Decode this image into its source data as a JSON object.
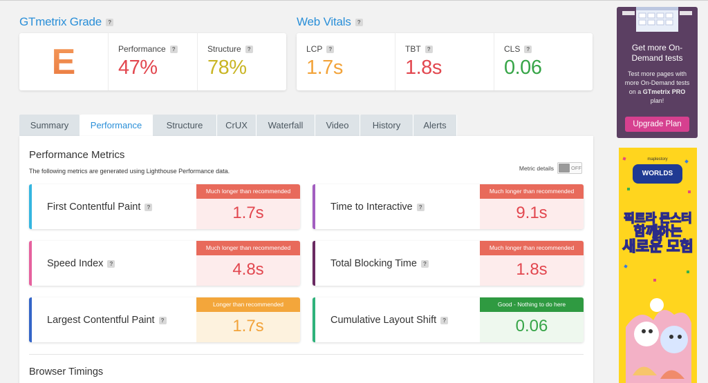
{
  "colors": {
    "accent": "#2a8fd8",
    "red": "#e2474f",
    "orange": "#f2a33a",
    "yellow_green": "#c9b524",
    "green": "#37a548",
    "badge_red": "#e86a5b",
    "badge_orange": "#f3a63b",
    "badge_green": "#2f9a41",
    "tint_red": "#fdecec",
    "tint_orange": "#fdf2de",
    "tint_green": "#eef8ee",
    "promo_bg": "#5b3f62",
    "promo_button": "#d6408f"
  },
  "grade": {
    "title": "GTmetrix Grade",
    "letter": "E",
    "performance": {
      "label": "Performance",
      "value": "47%"
    },
    "structure": {
      "label": "Structure",
      "value": "78%"
    }
  },
  "vitals": {
    "title": "Web Vitals",
    "lcp": {
      "label": "LCP",
      "value": "1.7s"
    },
    "tbt": {
      "label": "TBT",
      "value": "1.8s"
    },
    "cls": {
      "label": "CLS",
      "value": "0.06"
    }
  },
  "tabs": [
    {
      "label": "Summary"
    },
    {
      "label": "Performance"
    },
    {
      "label": "Structure"
    },
    {
      "label": "CrUX"
    },
    {
      "label": "Waterfall"
    },
    {
      "label": "Video"
    },
    {
      "label": "History"
    },
    {
      "label": "Alerts"
    }
  ],
  "active_tab": "Performance",
  "panel": {
    "title": "Performance Metrics",
    "description": "The following metrics are generated using Lighthouse Performance data.",
    "metric_details_label": "Metric details",
    "toggle_state": "OFF",
    "browser_timings_title": "Browser Timings"
  },
  "metrics": {
    "fcp": {
      "name": "First Contentful Paint",
      "status": "Much longer than recommended",
      "value": "1.7s",
      "bar_color": "#35b6e0"
    },
    "tti": {
      "name": "Time to Interactive",
      "status": "Much longer than recommended",
      "value": "9.1s",
      "bar_color": "#a25ec0"
    },
    "si": {
      "name": "Speed Index",
      "status": "Much longer than recommended",
      "value": "4.8s",
      "bar_color": "#e6619e"
    },
    "tbt": {
      "name": "Total Blocking Time",
      "status": "Much longer than recommended",
      "value": "1.8s",
      "bar_color": "#6a2a62"
    },
    "lcp": {
      "name": "Largest Contentful Paint",
      "status": "Longer than recommended",
      "value": "1.7s",
      "bar_color": "#3465c8"
    },
    "cls": {
      "name": "Cumulative Layout Shift",
      "status": "Good - Nothing to do here",
      "value": "0.06",
      "bar_color": "#2fb27b"
    }
  },
  "promo": {
    "title": "Get more On-Demand tests",
    "text_before": "Test more pages with more On-Demand tests on a ",
    "brand": "GTmetrix PRO",
    "text_after": " plan!",
    "button": "Upgrade Plan"
  },
  "ad": {
    "logo_small": "maplestory",
    "logo": "WORLDS",
    "line1": "픽트라 몬스터와",
    "line2": "함께하는",
    "line3": "새로운 모험"
  }
}
